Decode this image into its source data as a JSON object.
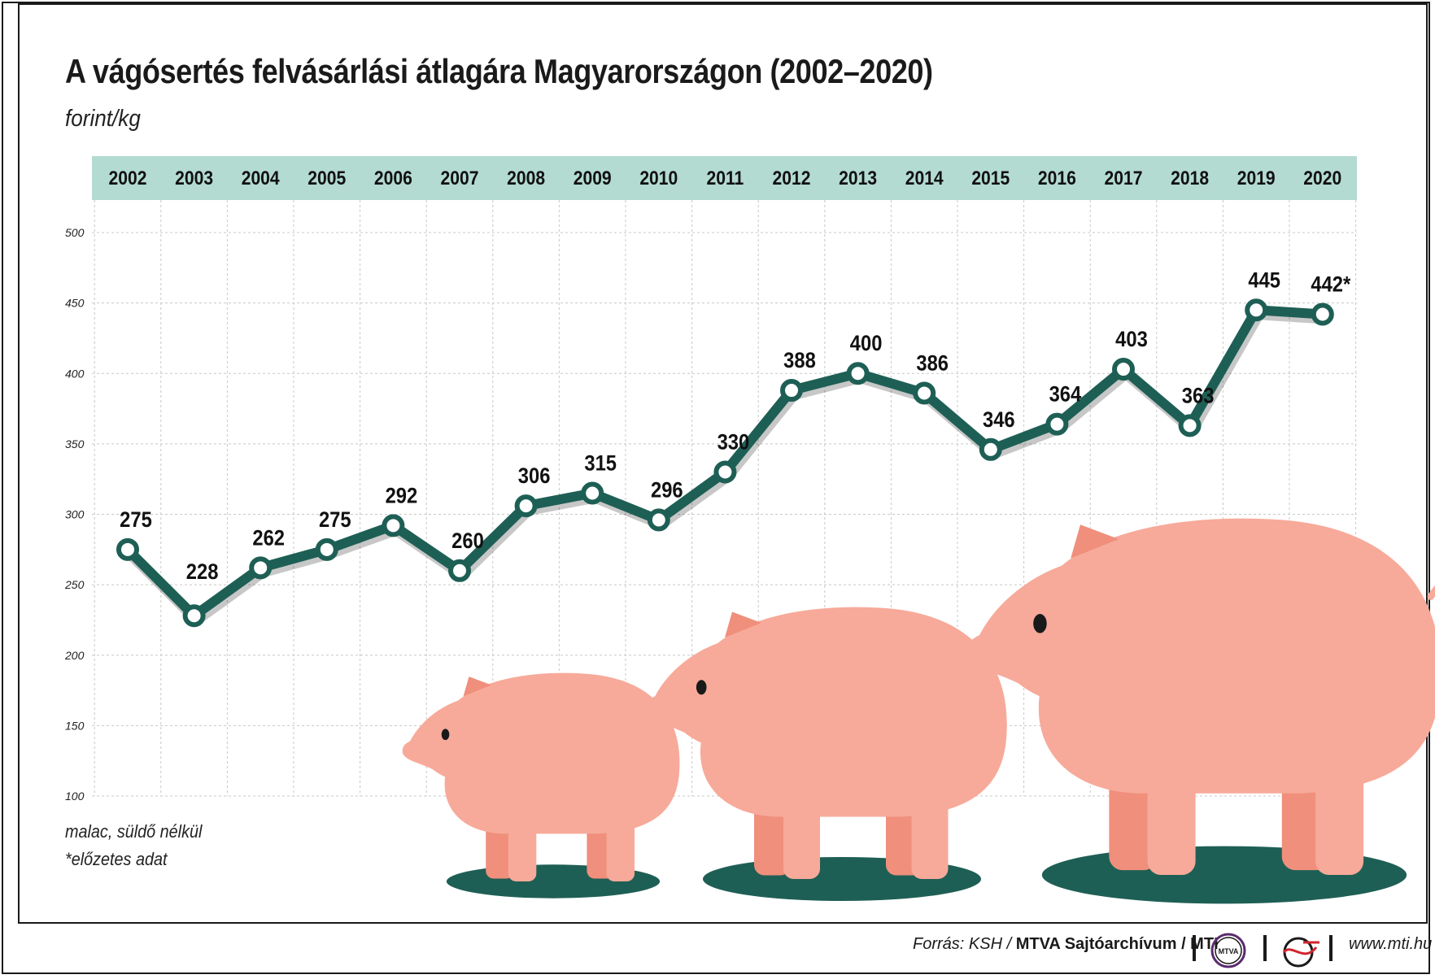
{
  "title": "A vágósertés felvásárlási átlagára Magyarországon  (2002–2020)",
  "unit": "forint/kg",
  "notes": [
    "malac, süldő nélkül",
    "*előzetes adat"
  ],
  "footer": {
    "source_prefix": "Forrás: KSH / ",
    "source_bold": "MTVA Sajtóarchívum / MTI",
    "logo1_text": "MTVA",
    "website": "www.mti.hu"
  },
  "colors": {
    "line": "#1e5f55",
    "header_band": "#b3dbd2",
    "pig": "#f7aa9a",
    "pig_dark": "#ef8f7c",
    "shadow_ellipse": "#1e5f55",
    "grid": "#c8c8c8"
  },
  "chart_data": {
    "type": "line",
    "title": "A vágósertés felvásárlási átlagára Magyarországon  (2002–2020)",
    "ylabel": "forint/kg",
    "xlabel": "",
    "categories": [
      "2002",
      "2003",
      "2004",
      "2005",
      "2006",
      "2007",
      "2008",
      "2009",
      "2010",
      "2011",
      "2012",
      "2013",
      "2014",
      "2015",
      "2016",
      "2017",
      "2018",
      "2019",
      "2020"
    ],
    "values": [
      275,
      228,
      262,
      275,
      292,
      260,
      306,
      315,
      296,
      330,
      388,
      400,
      386,
      346,
      364,
      403,
      363,
      445,
      442
    ],
    "data_labels": [
      "275",
      "228",
      "262",
      "275",
      "292",
      "260",
      "306",
      "315",
      "296",
      "330",
      "388",
      "400",
      "386",
      "346",
      "364",
      "403",
      "363",
      "445",
      "442*"
    ],
    "ylim": [
      100,
      500
    ],
    "yticks": [
      100,
      150,
      200,
      250,
      300,
      350,
      400,
      450,
      500
    ],
    "grid": true,
    "legend": "none"
  }
}
